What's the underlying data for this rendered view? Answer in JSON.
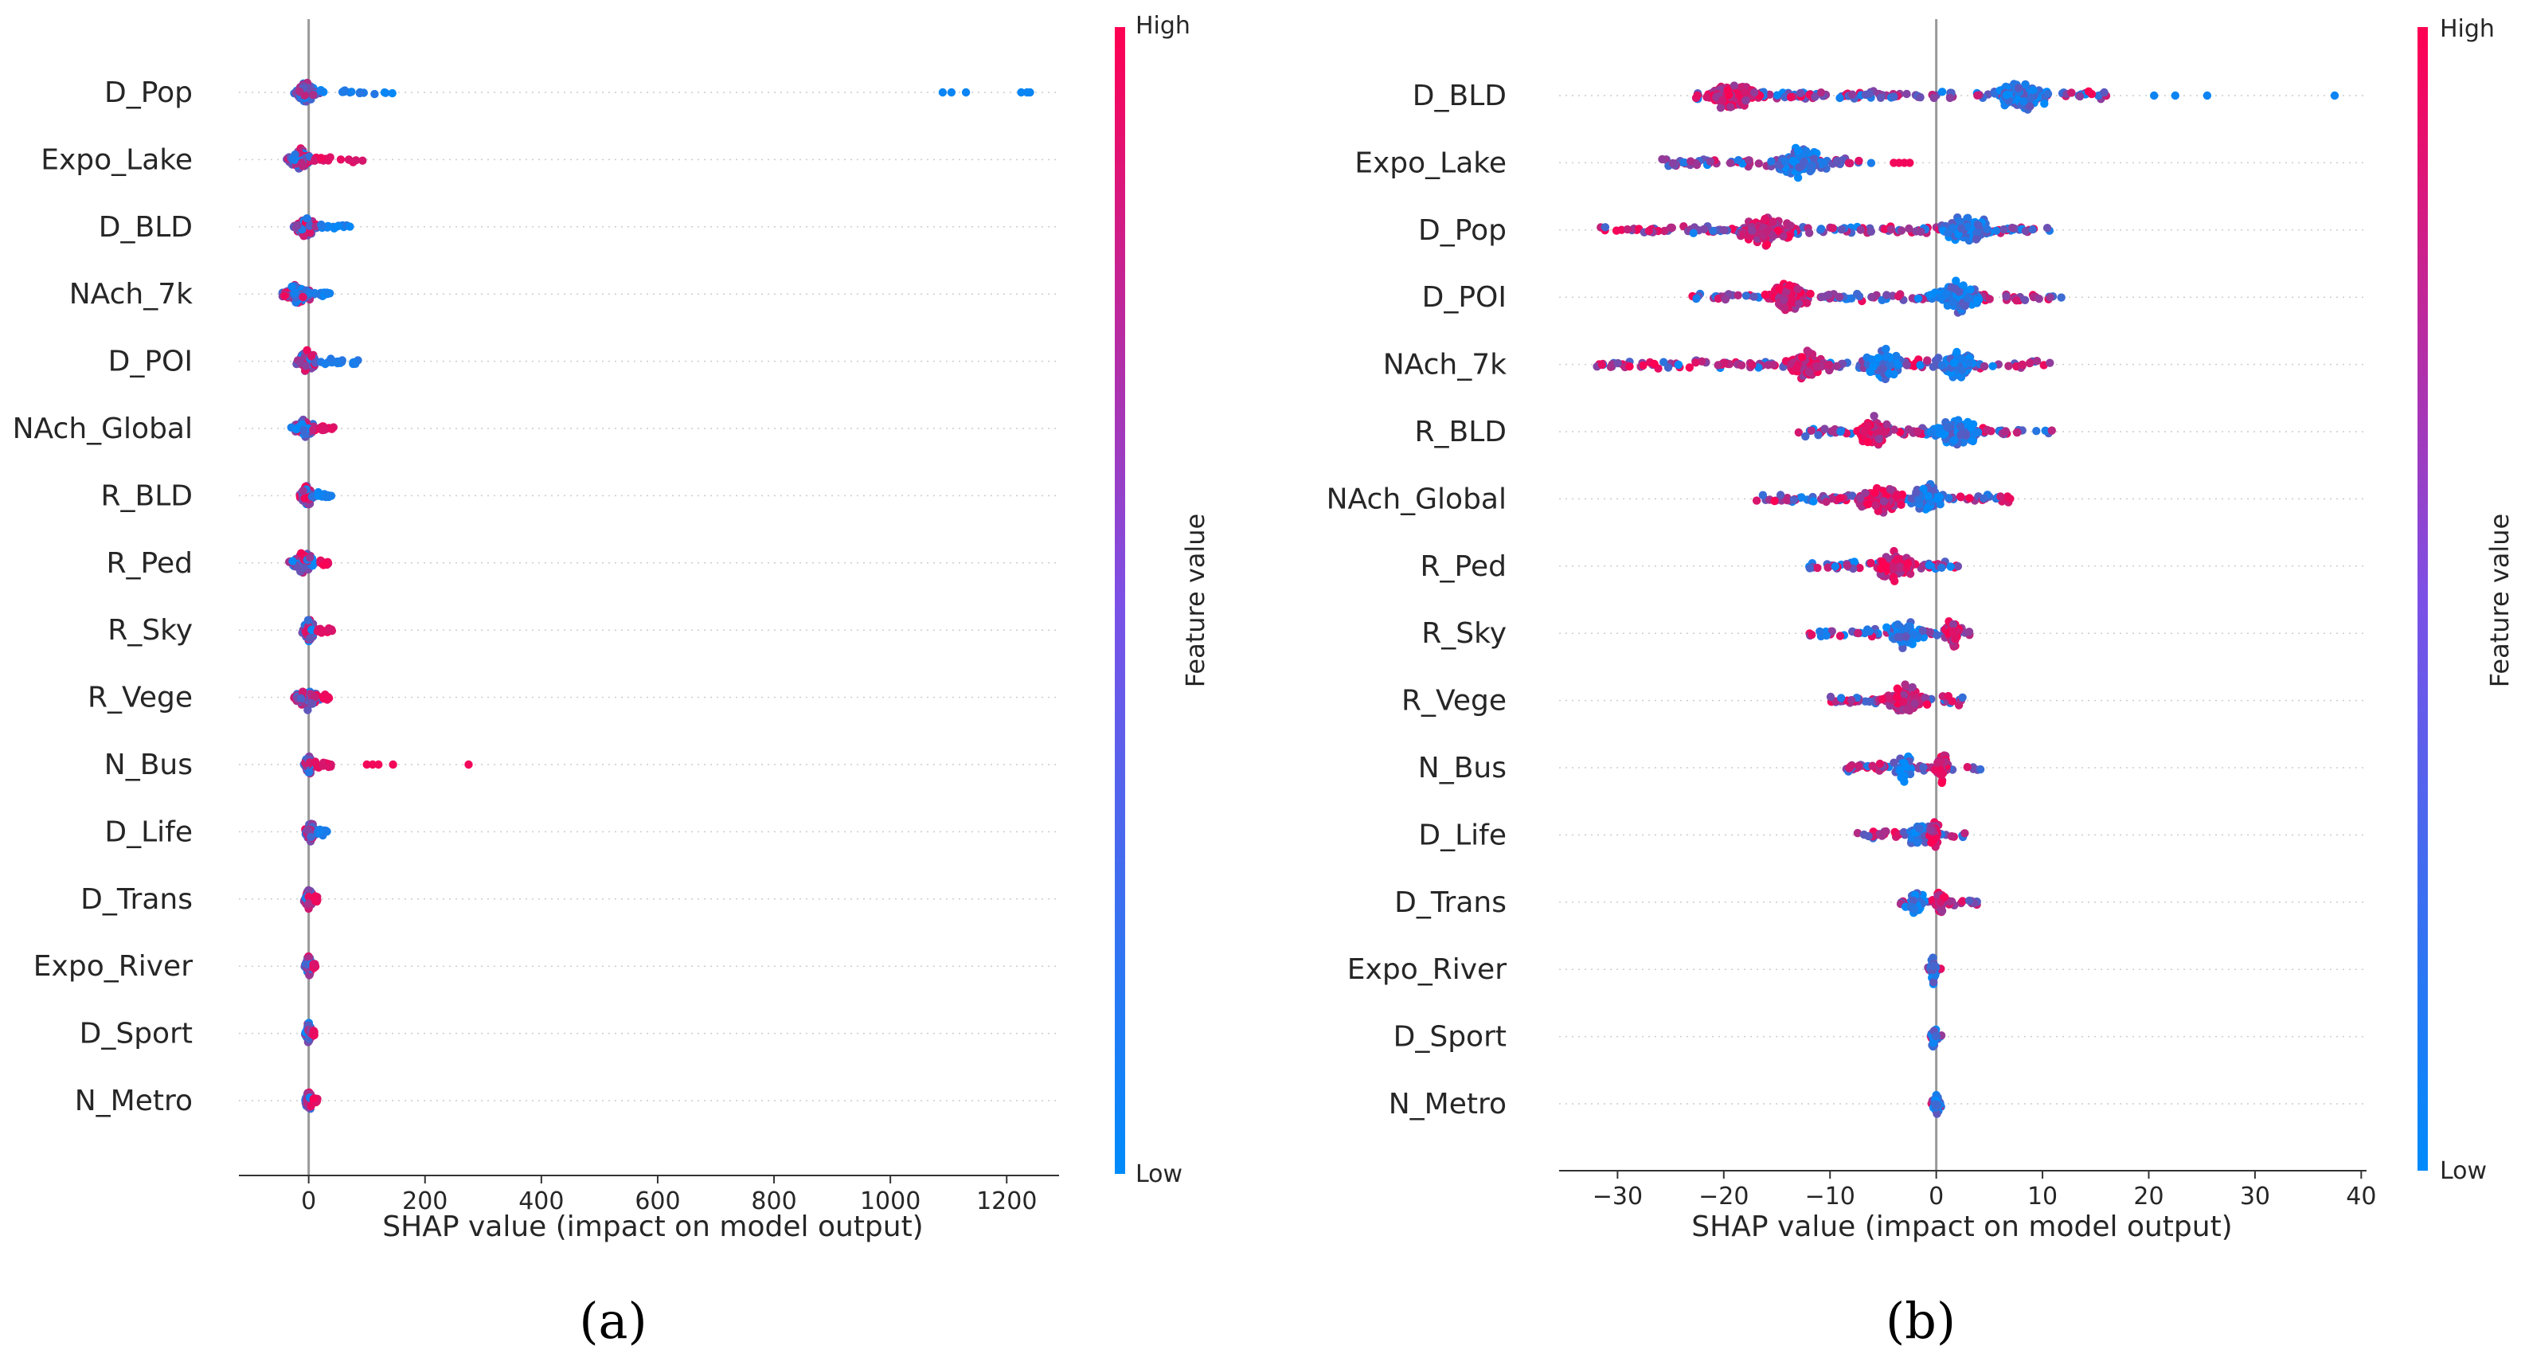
{
  "figure": {
    "colors": {
      "low": "#008bfb",
      "high": "#ff0052",
      "axis": "#333333",
      "grid": "#cccccc",
      "zero_line": "#999999"
    },
    "colorbar": {
      "high_label": "High",
      "low_label": "Low",
      "title": "Feature value"
    }
  },
  "chart_data": [
    {
      "type": "scatter",
      "subtype": "shap-beeswarm",
      "panel_label": "(a)",
      "xlabel": "SHAP value (impact on model output)",
      "ylabel": "",
      "xlim": [
        -120,
        1290
      ],
      "xticks": [
        0,
        200,
        400,
        600,
        800,
        1000,
        1200
      ],
      "grid": false,
      "colorbar": true,
      "features": [
        {
          "name": "D_Pop",
          "core": [
            -30,
            20
          ],
          "tail": [
            20,
            150
          ],
          "outliers": [
            1090,
            1105,
            1130,
            1225,
            1235,
            1240
          ],
          "tail_color": "low"
        },
        {
          "name": "Expo_Lake",
          "core": [
            -40,
            10
          ],
          "tail": [
            10,
            95
          ],
          "outliers": [],
          "tail_color": "high"
        },
        {
          "name": "D_BLD",
          "core": [
            -30,
            20
          ],
          "tail": [
            20,
            75
          ],
          "outliers": [],
          "tail_color": "low"
        },
        {
          "name": "NAch_7k",
          "core": [
            -55,
            20
          ],
          "tail": [
            20,
            40
          ],
          "outliers": [],
          "tail_color": "low"
        },
        {
          "name": "D_POI",
          "core": [
            -25,
            20
          ],
          "tail": [
            20,
            95
          ],
          "outliers": [],
          "tail_color": "low"
        },
        {
          "name": "NAch_Global",
          "core": [
            -35,
            20
          ],
          "tail": [
            20,
            45
          ],
          "outliers": [],
          "tail_color": "high"
        },
        {
          "name": "R_BLD",
          "core": [
            -20,
            15
          ],
          "tail": [
            15,
            40
          ],
          "outliers": [],
          "tail_color": "low"
        },
        {
          "name": "R_Ped",
          "core": [
            -40,
            20
          ],
          "tail": [
            20,
            35
          ],
          "outliers": [],
          "tail_color": "high"
        },
        {
          "name": "R_Sky",
          "core": [
            -15,
            15
          ],
          "tail": [
            15,
            40
          ],
          "outliers": [],
          "tail_color": "high"
        },
        {
          "name": "R_Vege",
          "core": [
            -30,
            25
          ],
          "tail": [
            25,
            35
          ],
          "outliers": [],
          "tail_color": "high"
        },
        {
          "name": "N_Bus",
          "core": [
            -10,
            10
          ],
          "tail": [
            10,
            40
          ],
          "outliers": [
            100,
            110,
            120,
            145,
            275
          ],
          "tail_color": "high"
        },
        {
          "name": "D_Life",
          "core": [
            -10,
            15
          ],
          "tail": [
            15,
            35
          ],
          "outliers": [],
          "tail_color": "low"
        },
        {
          "name": "D_Trans",
          "core": [
            -10,
            10
          ],
          "tail": [
            10,
            15
          ],
          "outliers": [],
          "tail_color": "high"
        },
        {
          "name": "Expo_River",
          "core": [
            -8,
            8
          ],
          "tail": [
            8,
            12
          ],
          "outliers": [],
          "tail_color": "high"
        },
        {
          "name": "D_Sport",
          "core": [
            -8,
            8
          ],
          "tail": [
            8,
            10
          ],
          "outliers": [],
          "tail_color": "high"
        },
        {
          "name": "N_Metro",
          "core": [
            -8,
            8
          ],
          "tail": [
            8,
            15
          ],
          "outliers": [],
          "tail_color": "high"
        }
      ]
    },
    {
      "type": "scatter",
      "subtype": "shap-beeswarm",
      "panel_label": "(b)",
      "xlabel": "SHAP value (impact on model output)",
      "ylabel": "",
      "xlim": [
        -35.5,
        40.5
      ],
      "xticks": [
        -30,
        -20,
        -10,
        0,
        10,
        20,
        30,
        40
      ],
      "grid": false,
      "colorbar": true,
      "features": [
        {
          "name": "D_BLD",
          "range": [
            -23,
            16
          ],
          "clusters": [
            {
              "c": -19,
              "w": 3,
              "h": "high"
            },
            {
              "c": 8,
              "w": 3,
              "h": "low"
            }
          ],
          "outliers": [
            20.5,
            22.5,
            25.5,
            37.5
          ]
        },
        {
          "name": "Expo_Lake",
          "range": [
            -26,
            -6
          ],
          "clusters": [
            {
              "c": -13,
              "w": 3,
              "h": "low"
            }
          ],
          "outliers": [
            -4,
            -3.5,
            -3,
            -2.5
          ]
        },
        {
          "name": "D_Pop",
          "range": [
            -32,
            11
          ],
          "clusters": [
            {
              "c": -16,
              "w": 3,
              "h": "high"
            },
            {
              "c": 3,
              "w": 3,
              "h": "low"
            }
          ],
          "outliers": []
        },
        {
          "name": "D_POI",
          "range": [
            -23,
            12
          ],
          "clusters": [
            {
              "c": -14,
              "w": 2.5,
              "h": "high"
            },
            {
              "c": 2,
              "w": 3,
              "h": "low"
            }
          ],
          "outliers": []
        },
        {
          "name": "NAch_7k",
          "range": [
            -32,
            11
          ],
          "clusters": [
            {
              "c": -12,
              "w": 2.5,
              "h": "high"
            },
            {
              "c": -5,
              "w": 2,
              "h": "low"
            },
            {
              "c": 2,
              "w": 2,
              "h": "low"
            }
          ],
          "outliers": []
        },
        {
          "name": "R_BLD",
          "range": [
            -13,
            11
          ],
          "clusters": [
            {
              "c": -6,
              "w": 2,
              "h": "high"
            },
            {
              "c": 2,
              "w": 3,
              "h": "low"
            }
          ],
          "outliers": []
        },
        {
          "name": "NAch_Global",
          "range": [
            -17,
            7
          ],
          "clusters": [
            {
              "c": -5,
              "w": 3,
              "h": "high"
            },
            {
              "c": -1,
              "w": 2,
              "h": "low"
            }
          ],
          "outliers": []
        },
        {
          "name": "R_Ped",
          "range": [
            -12,
            3
          ],
          "clusters": [
            {
              "c": -4,
              "w": 2.5,
              "h": "high"
            }
          ],
          "outliers": []
        },
        {
          "name": "R_Sky",
          "range": [
            -12,
            4
          ],
          "clusters": [
            {
              "c": -3,
              "w": 2.5,
              "h": "low"
            },
            {
              "c": 1.5,
              "w": 1,
              "h": "high"
            }
          ],
          "outliers": []
        },
        {
          "name": "R_Vege",
          "range": [
            -10,
            3
          ],
          "clusters": [
            {
              "c": -3,
              "w": 2.5,
              "h": "high"
            }
          ],
          "outliers": []
        },
        {
          "name": "N_Bus",
          "range": [
            -8.5,
            4.5
          ],
          "clusters": [
            {
              "c": -3,
              "w": 1.2,
              "h": "low"
            },
            {
              "c": 0.5,
              "w": 1,
              "h": "high"
            }
          ],
          "outliers": []
        },
        {
          "name": "D_Life",
          "range": [
            -7.5,
            3.5
          ],
          "clusters": [
            {
              "c": -1.5,
              "w": 1.5,
              "h": "low"
            },
            {
              "c": -0.2,
              "w": 0.6,
              "h": "high"
            }
          ],
          "outliers": []
        },
        {
          "name": "D_Trans",
          "range": [
            -3.5,
            4
          ],
          "clusters": [
            {
              "c": -2,
              "w": 1,
              "h": "low"
            },
            {
              "c": 0.3,
              "w": 0.8,
              "h": "high"
            }
          ],
          "outliers": []
        },
        {
          "name": "Expo_River",
          "range": [
            -0.8,
            0.5
          ],
          "clusters": [
            {
              "c": -0.3,
              "w": 0.3,
              "h": "low"
            }
          ],
          "outliers": []
        },
        {
          "name": "D_Sport",
          "range": [
            -0.8,
            0.5
          ],
          "clusters": [
            {
              "c": -0.2,
              "w": 0.3,
              "h": "low"
            }
          ],
          "outliers": []
        },
        {
          "name": "N_Metro",
          "range": [
            -0.5,
            0.5
          ],
          "clusters": [
            {
              "c": 0,
              "w": 0.3,
              "h": "low"
            }
          ],
          "outliers": []
        }
      ]
    }
  ]
}
